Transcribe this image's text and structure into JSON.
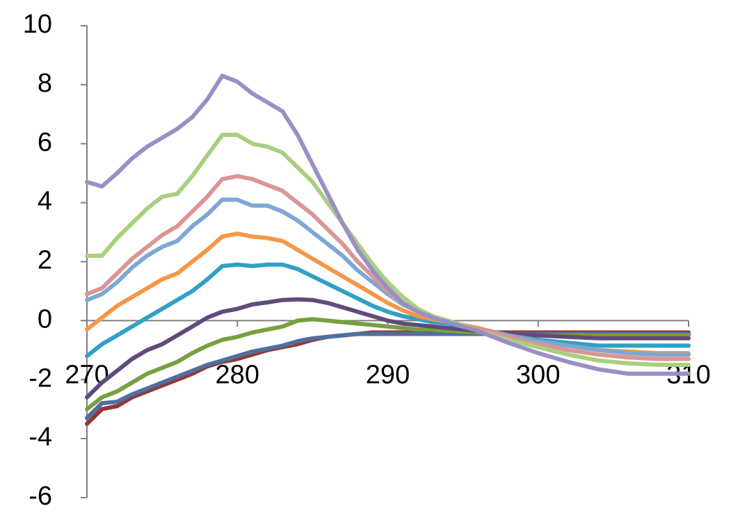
{
  "chart_data": {
    "type": "line",
    "x": [
      270,
      271,
      272,
      273,
      274,
      275,
      276,
      277,
      278,
      279,
      280,
      281,
      282,
      283,
      284,
      285,
      286,
      287,
      288,
      289,
      290,
      291,
      292,
      293,
      294,
      296,
      298,
      300,
      302,
      304,
      306,
      308,
      310
    ],
    "xlim": [
      270,
      310
    ],
    "xticks": [
      270,
      280,
      290,
      300,
      310
    ],
    "ylim": [
      -6,
      10
    ],
    "yticks": [
      -6,
      -4,
      -2,
      0,
      2,
      4,
      6,
      8,
      10
    ],
    "grid": false,
    "series": [
      {
        "color": "#953735",
        "values": [
          -3.5,
          -3.0,
          -2.9,
          -2.6,
          -2.4,
          -2.2,
          -2.0,
          -1.8,
          -1.55,
          -1.4,
          -1.3,
          -1.15,
          -1.0,
          -0.9,
          -0.8,
          -0.65,
          -0.55,
          -0.5,
          -0.45,
          -0.4,
          -0.4,
          -0.4,
          -0.4,
          -0.4,
          -0.4,
          -0.4,
          -0.4,
          -0.4,
          -0.4,
          -0.4,
          -0.4,
          -0.4,
          -0.4
        ]
      },
      {
        "color": "#4f6fa0",
        "values": [
          -3.3,
          -2.8,
          -2.75,
          -2.5,
          -2.3,
          -2.1,
          -1.9,
          -1.7,
          -1.5,
          -1.35,
          -1.2,
          -1.05,
          -0.95,
          -0.85,
          -0.7,
          -0.6,
          -0.55,
          -0.5,
          -0.45,
          -0.45,
          -0.45,
          -0.45,
          -0.45,
          -0.45,
          -0.45,
          -0.45,
          -0.45,
          -0.45,
          -0.45,
          -0.45,
          -0.45,
          -0.45,
          -0.45
        ]
      },
      {
        "color": "#77a040",
        "values": [
          -3.0,
          -2.6,
          -2.4,
          -2.1,
          -1.8,
          -1.6,
          -1.4,
          -1.1,
          -0.85,
          -0.65,
          -0.55,
          -0.4,
          -0.3,
          -0.2,
          0.0,
          0.05,
          0.0,
          -0.05,
          -0.1,
          -0.15,
          -0.2,
          -0.25,
          -0.3,
          -0.3,
          -0.35,
          -0.4,
          -0.45,
          -0.5,
          -0.5,
          -0.5,
          -0.5,
          -0.5,
          -0.5
        ]
      },
      {
        "color": "#604a7b",
        "values": [
          -2.6,
          -2.1,
          -1.7,
          -1.3,
          -1.0,
          -0.8,
          -0.5,
          -0.2,
          0.1,
          0.3,
          0.4,
          0.55,
          0.62,
          0.7,
          0.72,
          0.7,
          0.6,
          0.45,
          0.3,
          0.15,
          0.0,
          -0.1,
          -0.15,
          -0.2,
          -0.25,
          -0.35,
          -0.45,
          -0.5,
          -0.55,
          -0.6,
          -0.6,
          -0.6,
          -0.6
        ]
      },
      {
        "color": "#31a0c4",
        "values": [
          -1.2,
          -0.8,
          -0.5,
          -0.2,
          0.1,
          0.4,
          0.7,
          1.0,
          1.4,
          1.85,
          1.9,
          1.85,
          1.9,
          1.9,
          1.75,
          1.5,
          1.25,
          1.0,
          0.75,
          0.5,
          0.3,
          0.15,
          0.05,
          -0.05,
          -0.1,
          -0.3,
          -0.5,
          -0.65,
          -0.75,
          -0.85,
          -0.85,
          -0.85,
          -0.85
        ]
      },
      {
        "color": "#f79646",
        "values": [
          -0.3,
          0.1,
          0.5,
          0.8,
          1.1,
          1.4,
          1.6,
          2.0,
          2.4,
          2.85,
          2.95,
          2.85,
          2.8,
          2.7,
          2.4,
          2.1,
          1.8,
          1.5,
          1.2,
          0.9,
          0.6,
          0.35,
          0.15,
          0.05,
          -0.05,
          -0.25,
          -0.5,
          -0.7,
          -0.85,
          -1.0,
          -1.05,
          -1.1,
          -1.1
        ]
      },
      {
        "color": "#7fa7d4",
        "values": [
          0.7,
          0.9,
          1.3,
          1.8,
          2.2,
          2.5,
          2.7,
          3.2,
          3.6,
          4.1,
          4.1,
          3.9,
          3.9,
          3.7,
          3.4,
          3.0,
          2.6,
          2.2,
          1.7,
          1.3,
          0.9,
          0.55,
          0.3,
          0.1,
          -0.05,
          -0.3,
          -0.5,
          -0.7,
          -0.85,
          -1.0,
          -1.1,
          -1.15,
          -1.15
        ]
      },
      {
        "color": "#d99694",
        "values": [
          0.9,
          1.1,
          1.6,
          2.1,
          2.5,
          2.9,
          3.2,
          3.7,
          4.2,
          4.8,
          4.9,
          4.8,
          4.6,
          4.4,
          4.0,
          3.6,
          3.1,
          2.6,
          2.0,
          1.5,
          1.0,
          0.6,
          0.3,
          0.1,
          -0.05,
          -0.3,
          -0.55,
          -0.8,
          -1.0,
          -1.15,
          -1.25,
          -1.3,
          -1.3
        ]
      },
      {
        "color": "#a9cf80",
        "values": [
          2.2,
          2.2,
          2.8,
          3.3,
          3.8,
          4.2,
          4.3,
          4.9,
          5.6,
          6.3,
          6.3,
          6.0,
          5.9,
          5.7,
          5.2,
          4.7,
          4.0,
          3.3,
          2.6,
          1.9,
          1.3,
          0.8,
          0.4,
          0.15,
          0.0,
          -0.35,
          -0.65,
          -0.9,
          -1.15,
          -1.35,
          -1.45,
          -1.5,
          -1.5
        ]
      },
      {
        "color": "#9b8ec4",
        "values": [
          4.7,
          4.55,
          5.0,
          5.5,
          5.9,
          6.2,
          6.5,
          6.9,
          7.5,
          8.3,
          8.1,
          7.7,
          7.4,
          7.1,
          6.3,
          5.3,
          4.3,
          3.3,
          2.4,
          1.7,
          1.1,
          0.6,
          0.3,
          0.1,
          -0.05,
          -0.35,
          -0.75,
          -1.1,
          -1.4,
          -1.65,
          -1.8,
          -1.8,
          -1.8
        ]
      }
    ]
  }
}
